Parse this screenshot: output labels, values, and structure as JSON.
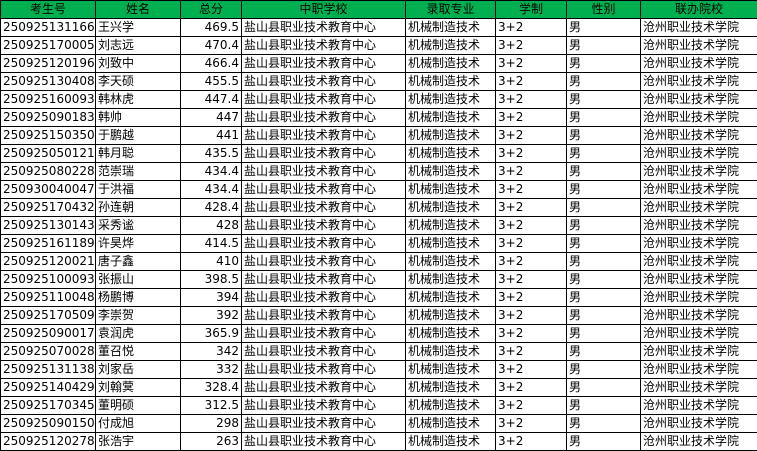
{
  "table": {
    "header": [
      "考生号",
      "姓名",
      "总分",
      "中职学校",
      "录取专业",
      "学制",
      "性别",
      "联办院校"
    ],
    "rows": [
      [
        "250925131166",
        "王兴学",
        469.5,
        "盐山县职业技术教育中心",
        "机械制造技术",
        "3+2",
        "男",
        "沧州职业技术学院"
      ],
      [
        "250925170005",
        "刘志远",
        470.4,
        "盐山县职业技术教育中心",
        "机械制造技术",
        "3+2",
        "男",
        "沧州职业技术学院"
      ],
      [
        "250925120196",
        "刘致中",
        466.4,
        "盐山县职业技术教育中心",
        "机械制造技术",
        "3+2",
        "男",
        "沧州职业技术学院"
      ],
      [
        "250925130408",
        "李天硕",
        455.5,
        "盐山县职业技术教育中心",
        "机械制造技术",
        "3+2",
        "男",
        "沧州职业技术学院"
      ],
      [
        "250925160093",
        "韩林虎",
        447.4,
        "盐山县职业技术教育中心",
        "机械制造技术",
        "3+2",
        "男",
        "沧州职业技术学院"
      ],
      [
        "250925090183",
        "韩帅",
        447,
        "盐山县职业技术教育中心",
        "机械制造技术",
        "3+2",
        "男",
        "沧州职业技术学院"
      ],
      [
        "250925150350",
        "于鹏越",
        441,
        "盐山县职业技术教育中心",
        "机械制造技术",
        "3+2",
        "男",
        "沧州职业技术学院"
      ],
      [
        "250925050121",
        "韩月聪",
        435.5,
        "盐山县职业技术教育中心",
        "机械制造技术",
        "3+2",
        "男",
        "沧州职业技术学院"
      ],
      [
        "250925080228",
        "范崇瑞",
        434.4,
        "盐山县职业技术教育中心",
        "机械制造技术",
        "3+2",
        "男",
        "沧州职业技术学院"
      ],
      [
        "250930040047",
        "于洪福",
        434.4,
        "盐山县职业技术教育中心",
        "机械制造技术",
        "3+2",
        "男",
        "沧州职业技术学院"
      ],
      [
        "250925170432",
        "孙连朝",
        428.4,
        "盐山县职业技术教育中心",
        "机械制造技术",
        "3+2",
        "男",
        "沧州职业技术学院"
      ],
      [
        "250925130143",
        "采秀谧",
        428,
        "盐山县职业技术教育中心",
        "机械制造技术",
        "3+2",
        "男",
        "沧州职业技术学院"
      ],
      [
        "250925161189",
        "许昊烨",
        414.5,
        "盐山县职业技术教育中心",
        "机械制造技术",
        "3+2",
        "男",
        "沧州职业技术学院"
      ],
      [
        "250925120021",
        "唐子鑫",
        410,
        "盐山县职业技术教育中心",
        "机械制造技术",
        "3+2",
        "男",
        "沧州职业技术学院"
      ],
      [
        "250925100093",
        "张振山",
        398.5,
        "盐山县职业技术教育中心",
        "机械制造技术",
        "3+2",
        "男",
        "沧州职业技术学院"
      ],
      [
        "250925110048",
        "杨鹏博",
        394,
        "盐山县职业技术教育中心",
        "机械制造技术",
        "3+2",
        "男",
        "沧州职业技术学院"
      ],
      [
        "250925170509",
        "李崇贺",
        392,
        "盐山县职业技术教育中心",
        "机械制造技术",
        "3+2",
        "男",
        "沧州职业技术学院"
      ],
      [
        "250925090017",
        "袁润虎",
        365.9,
        "盐山县职业技术教育中心",
        "机械制造技术",
        "3+2",
        "男",
        "沧州职业技术学院"
      ],
      [
        "250925070028",
        "董召悦",
        342,
        "盐山县职业技术教育中心",
        "机械制造技术",
        "3+2",
        "男",
        "沧州职业技术学院"
      ],
      [
        "250925131138",
        "刘家岳",
        332,
        "盐山县职业技术教育中心",
        "机械制造技术",
        "3+2",
        "男",
        "沧州职业技术学院"
      ],
      [
        "250925140429",
        "刘翰蓂",
        328.4,
        "盐山县职业技术教育中心",
        "机械制造技术",
        "3+2",
        "男",
        "沧州职业技术学院"
      ],
      [
        "250925170345",
        "董明硕",
        312.5,
        "盐山县职业技术教育中心",
        "机械制造技术",
        "3+2",
        "男",
        "沧州职业技术学院"
      ],
      [
        "250925090150",
        "付成旭",
        298,
        "盐山县职业技术教育中心",
        "机械制造技术",
        "3+2",
        "男",
        "沧州职业技术学院"
      ],
      [
        "250925120278",
        "张浩宇",
        263,
        "盐山县职业技术教育中心",
        "机械制造技术",
        "3+2",
        "男",
        "沧州职业技术学院"
      ]
    ]
  }
}
